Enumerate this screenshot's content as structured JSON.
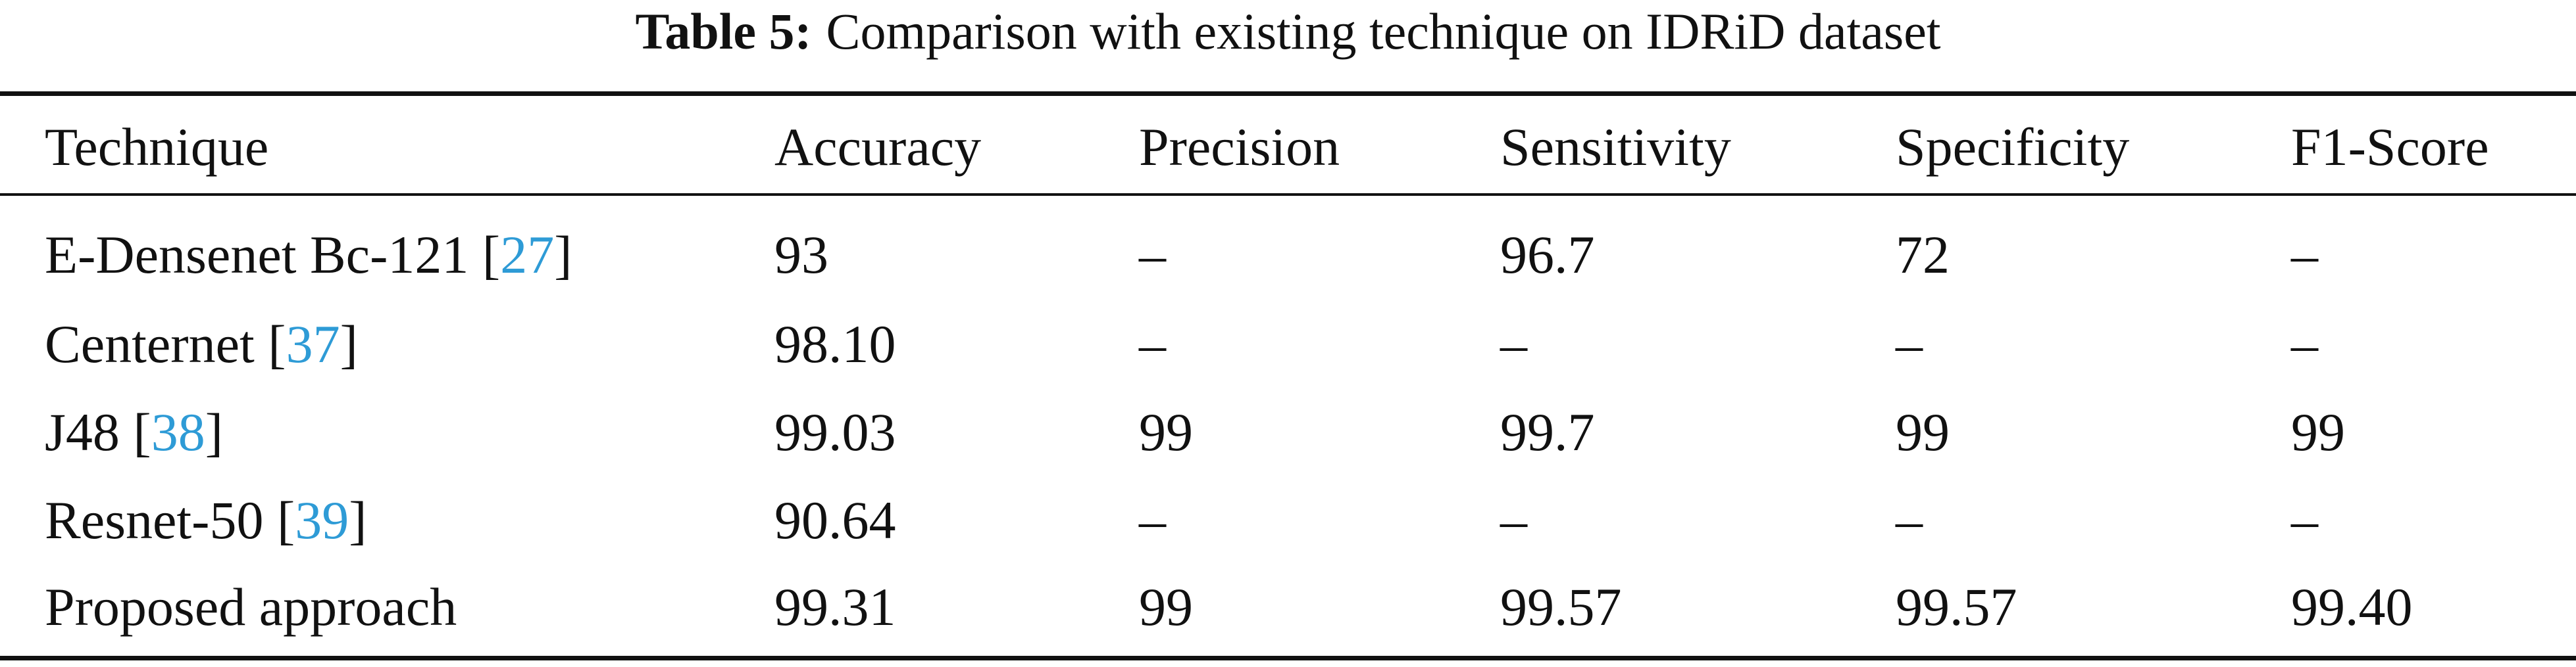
{
  "caption": {
    "label": "Table 5:",
    "text": "Comparison with existing technique on IDRiD dataset"
  },
  "table": {
    "header": [
      "Technique",
      "Accuracy",
      "Precision",
      "Sensitivity",
      "Specificity",
      "F1-Score"
    ],
    "rows": [
      [
        [
          "E-Densenet Bc-121 [",
          "27",
          "]"
        ],
        "93",
        "–",
        "96.7",
        "72",
        "–"
      ],
      [
        [
          "Centernet [",
          "37",
          "]"
        ],
        "98.10",
        "–",
        "–",
        "–",
        "–"
      ],
      [
        [
          "J48 [",
          "38",
          "]"
        ],
        "99.03",
        "99",
        "99.7",
        "99",
        "99"
      ],
      [
        [
          "Resnet-50 [",
          "39",
          "]"
        ],
        "90.64",
        "–",
        "–",
        "–",
        "–"
      ],
      [
        [
          "Proposed approach"
        ],
        "99.31",
        "99",
        "99.57",
        "99.57",
        "99.40"
      ]
    ]
  }
}
